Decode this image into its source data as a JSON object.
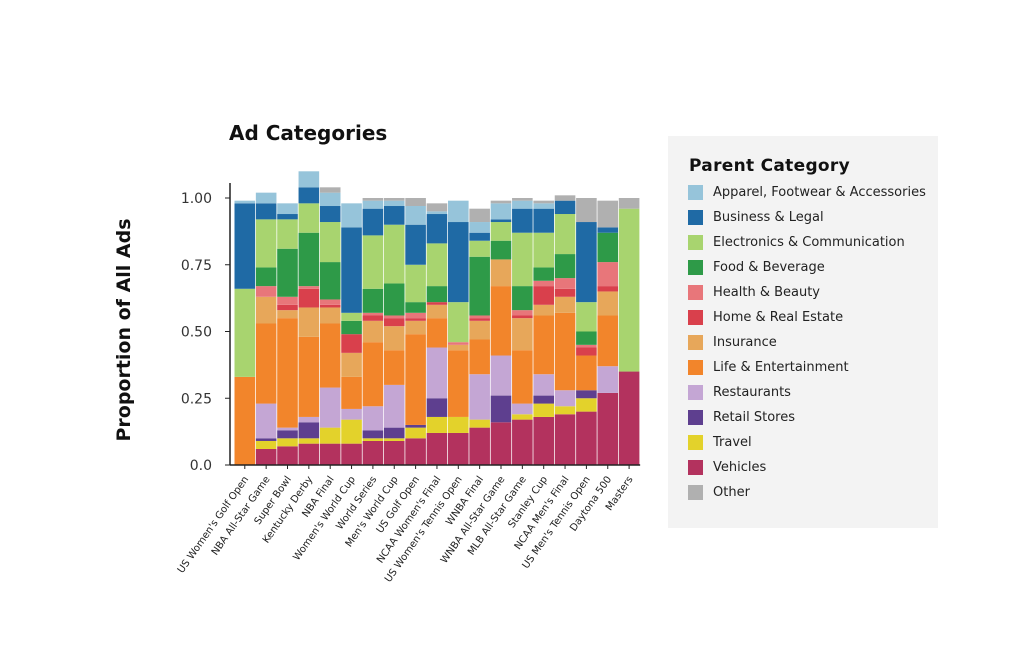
{
  "chart_data": {
    "type": "bar",
    "stacked": true,
    "title": "Ad Categories",
    "ylabel": "Proportion of All Ads",
    "xlabel": "",
    "ylim": [
      0,
      1.0
    ],
    "yticks": [
      "0.0",
      "0.25",
      "0.50",
      "0.75",
      "1.00"
    ],
    "legend_title": "Parent Category",
    "legend_position": "right",
    "categories": [
      "US Women's Golf Open",
      "NBA All-Star Game",
      "Super Bowl",
      "Kentucky Derby",
      "NBA Final",
      "Women's World Cup",
      "World Series",
      "Men's World Cup",
      "US Golf Open",
      "NCAA Women's Final",
      "US Women's Tennis Open",
      "WNBA Final",
      "WNBA All-Star Game",
      "MLB All-Star Game",
      "Stanley Cup",
      "NCAA Men's Final",
      "US Men's Tennis Open",
      "Daytona 500",
      "Masters"
    ],
    "series": [
      {
        "name": "Vehicles",
        "color": "#b3325e",
        "values": [
          0,
          0.06,
          0.07,
          0.08,
          0.08,
          0.08,
          0.09,
          0.09,
          0.1,
          0.12,
          0.12,
          0.14,
          0.16,
          0.17,
          0.18,
          0.19,
          0.2,
          0.27,
          0.35
        ]
      },
      {
        "name": "Travel",
        "color": "#e3d22b",
        "values": [
          0,
          0.03,
          0.03,
          0.02,
          0.06,
          0.09,
          0.01,
          0.01,
          0.04,
          0.06,
          0.06,
          0.03,
          0,
          0.02,
          0.05,
          0.03,
          0.05,
          0,
          0
        ]
      },
      {
        "name": "Retail Stores",
        "color": "#5e3f8f",
        "values": [
          0,
          0.01,
          0.03,
          0.06,
          0,
          0,
          0.03,
          0.04,
          0.01,
          0.07,
          0,
          0,
          0.1,
          0,
          0.03,
          0,
          0.03,
          0,
          0
        ]
      },
      {
        "name": "Restaurants",
        "color": "#c4a6d4",
        "values": [
          0,
          0.13,
          0.01,
          0.02,
          0.15,
          0.04,
          0.09,
          0.16,
          0,
          0.19,
          0,
          0.17,
          0.15,
          0.04,
          0.08,
          0.06,
          0,
          0.1,
          0
        ]
      },
      {
        "name": "Life & Entertainment",
        "color": "#f2852b",
        "values": [
          0.33,
          0.3,
          0.41,
          0.3,
          0.24,
          0.12,
          0.24,
          0.13,
          0.34,
          0.11,
          0.25,
          0.13,
          0.26,
          0.2,
          0.22,
          0.29,
          0.13,
          0.19,
          0
        ]
      },
      {
        "name": "Insurance",
        "color": "#e7a75a",
        "values": [
          0,
          0.1,
          0.03,
          0.11,
          0.06,
          0.09,
          0.08,
          0.09,
          0.05,
          0.05,
          0.02,
          0.07,
          0.1,
          0.12,
          0.04,
          0.06,
          0,
          0.09,
          0
        ]
      },
      {
        "name": "Home & Real Estate",
        "color": "#d9404c",
        "values": [
          0,
          0,
          0.02,
          0.07,
          0.01,
          0.07,
          0.02,
          0.03,
          0.01,
          0.01,
          0,
          0.01,
          0,
          0.01,
          0.07,
          0.03,
          0.03,
          0.02,
          0
        ]
      },
      {
        "name": "Health & Beauty",
        "color": "#e8767a",
        "values": [
          0,
          0.04,
          0.03,
          0.01,
          0.02,
          0,
          0.01,
          0.01,
          0.02,
          0,
          0.01,
          0.01,
          0,
          0.02,
          0.02,
          0.04,
          0.01,
          0.09,
          0
        ]
      },
      {
        "name": "Food & Beverage",
        "color": "#2e9a48",
        "values": [
          0,
          0.07,
          0.18,
          0.2,
          0.14,
          0.05,
          0.09,
          0.12,
          0.04,
          0.06,
          0,
          0.22,
          0.07,
          0.09,
          0.05,
          0.09,
          0.05,
          0.11,
          0
        ]
      },
      {
        "name": "Electronics & Communication",
        "color": "#a8d46f",
        "values": [
          0.33,
          0.18,
          0.11,
          0.11,
          0.15,
          0.03,
          0.2,
          0.22,
          0.14,
          0.16,
          0.15,
          0.06,
          0.07,
          0.2,
          0.13,
          0.15,
          0.11,
          0,
          0.61
        ]
      },
      {
        "name": "Business & Legal",
        "color": "#1f6aa5",
        "values": [
          0.32,
          0.06,
          0.02,
          0.06,
          0.06,
          0.32,
          0.1,
          0.07,
          0.15,
          0.11,
          0.3,
          0.03,
          0.01,
          0.09,
          0.09,
          0.05,
          0.3,
          0.02,
          0
        ]
      },
      {
        "name": "Apparel, Footwear & Accessories",
        "color": "#96c4da",
        "values": [
          0.01,
          0.04,
          0.04,
          0.06,
          0.05,
          0.09,
          0.03,
          0.02,
          0.07,
          0.01,
          0.08,
          0.04,
          0.06,
          0.03,
          0.02,
          0,
          0,
          0,
          0
        ]
      },
      {
        "name": "Other",
        "color": "#b0b0b0",
        "values": [
          0,
          0,
          0,
          0,
          0.02,
          0,
          0.01,
          0.01,
          0.03,
          0.03,
          0,
          0.05,
          0.01,
          0.01,
          0.01,
          0.02,
          0.09,
          0.1,
          0.04
        ]
      }
    ]
  },
  "legend_order": [
    "Apparel, Footwear & Accessories",
    "Business & Legal",
    "Electronics & Communication",
    "Food & Beverage",
    "Health & Beauty",
    "Home & Real Estate",
    "Insurance",
    "Life & Entertainment",
    "Restaurants",
    "Retail Stores",
    "Travel",
    "Vehicles",
    "Other"
  ]
}
